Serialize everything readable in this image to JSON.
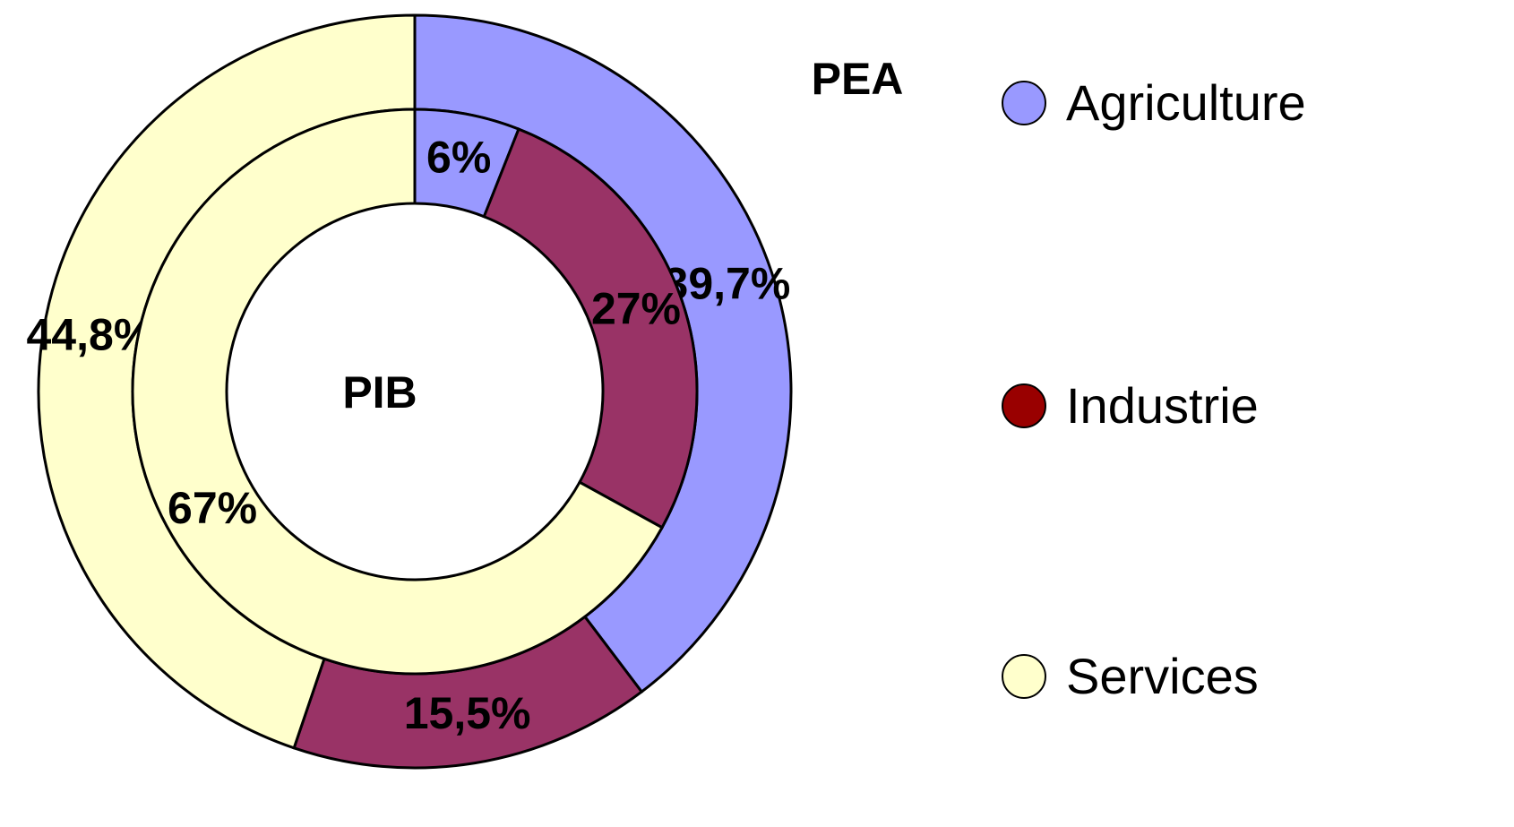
{
  "chart_data": {
    "type": "donut",
    "categories": [
      "Agriculture",
      "Industrie",
      "Services"
    ],
    "colors": [
      "#9999ff",
      "#993366",
      "#ffffcc"
    ],
    "legend_colors": [
      "#9999ff",
      "#990000",
      "#ffffcc"
    ],
    "series": [
      {
        "name": "PEA",
        "values": [
          39.7,
          15.5,
          44.8
        ],
        "value_labels": [
          "39,7%",
          "15,5%",
          "44,8%"
        ]
      },
      {
        "name": "PIB",
        "values": [
          6,
          27,
          67
        ],
        "value_labels": [
          "6%",
          "27%",
          "67%"
        ]
      }
    ]
  }
}
